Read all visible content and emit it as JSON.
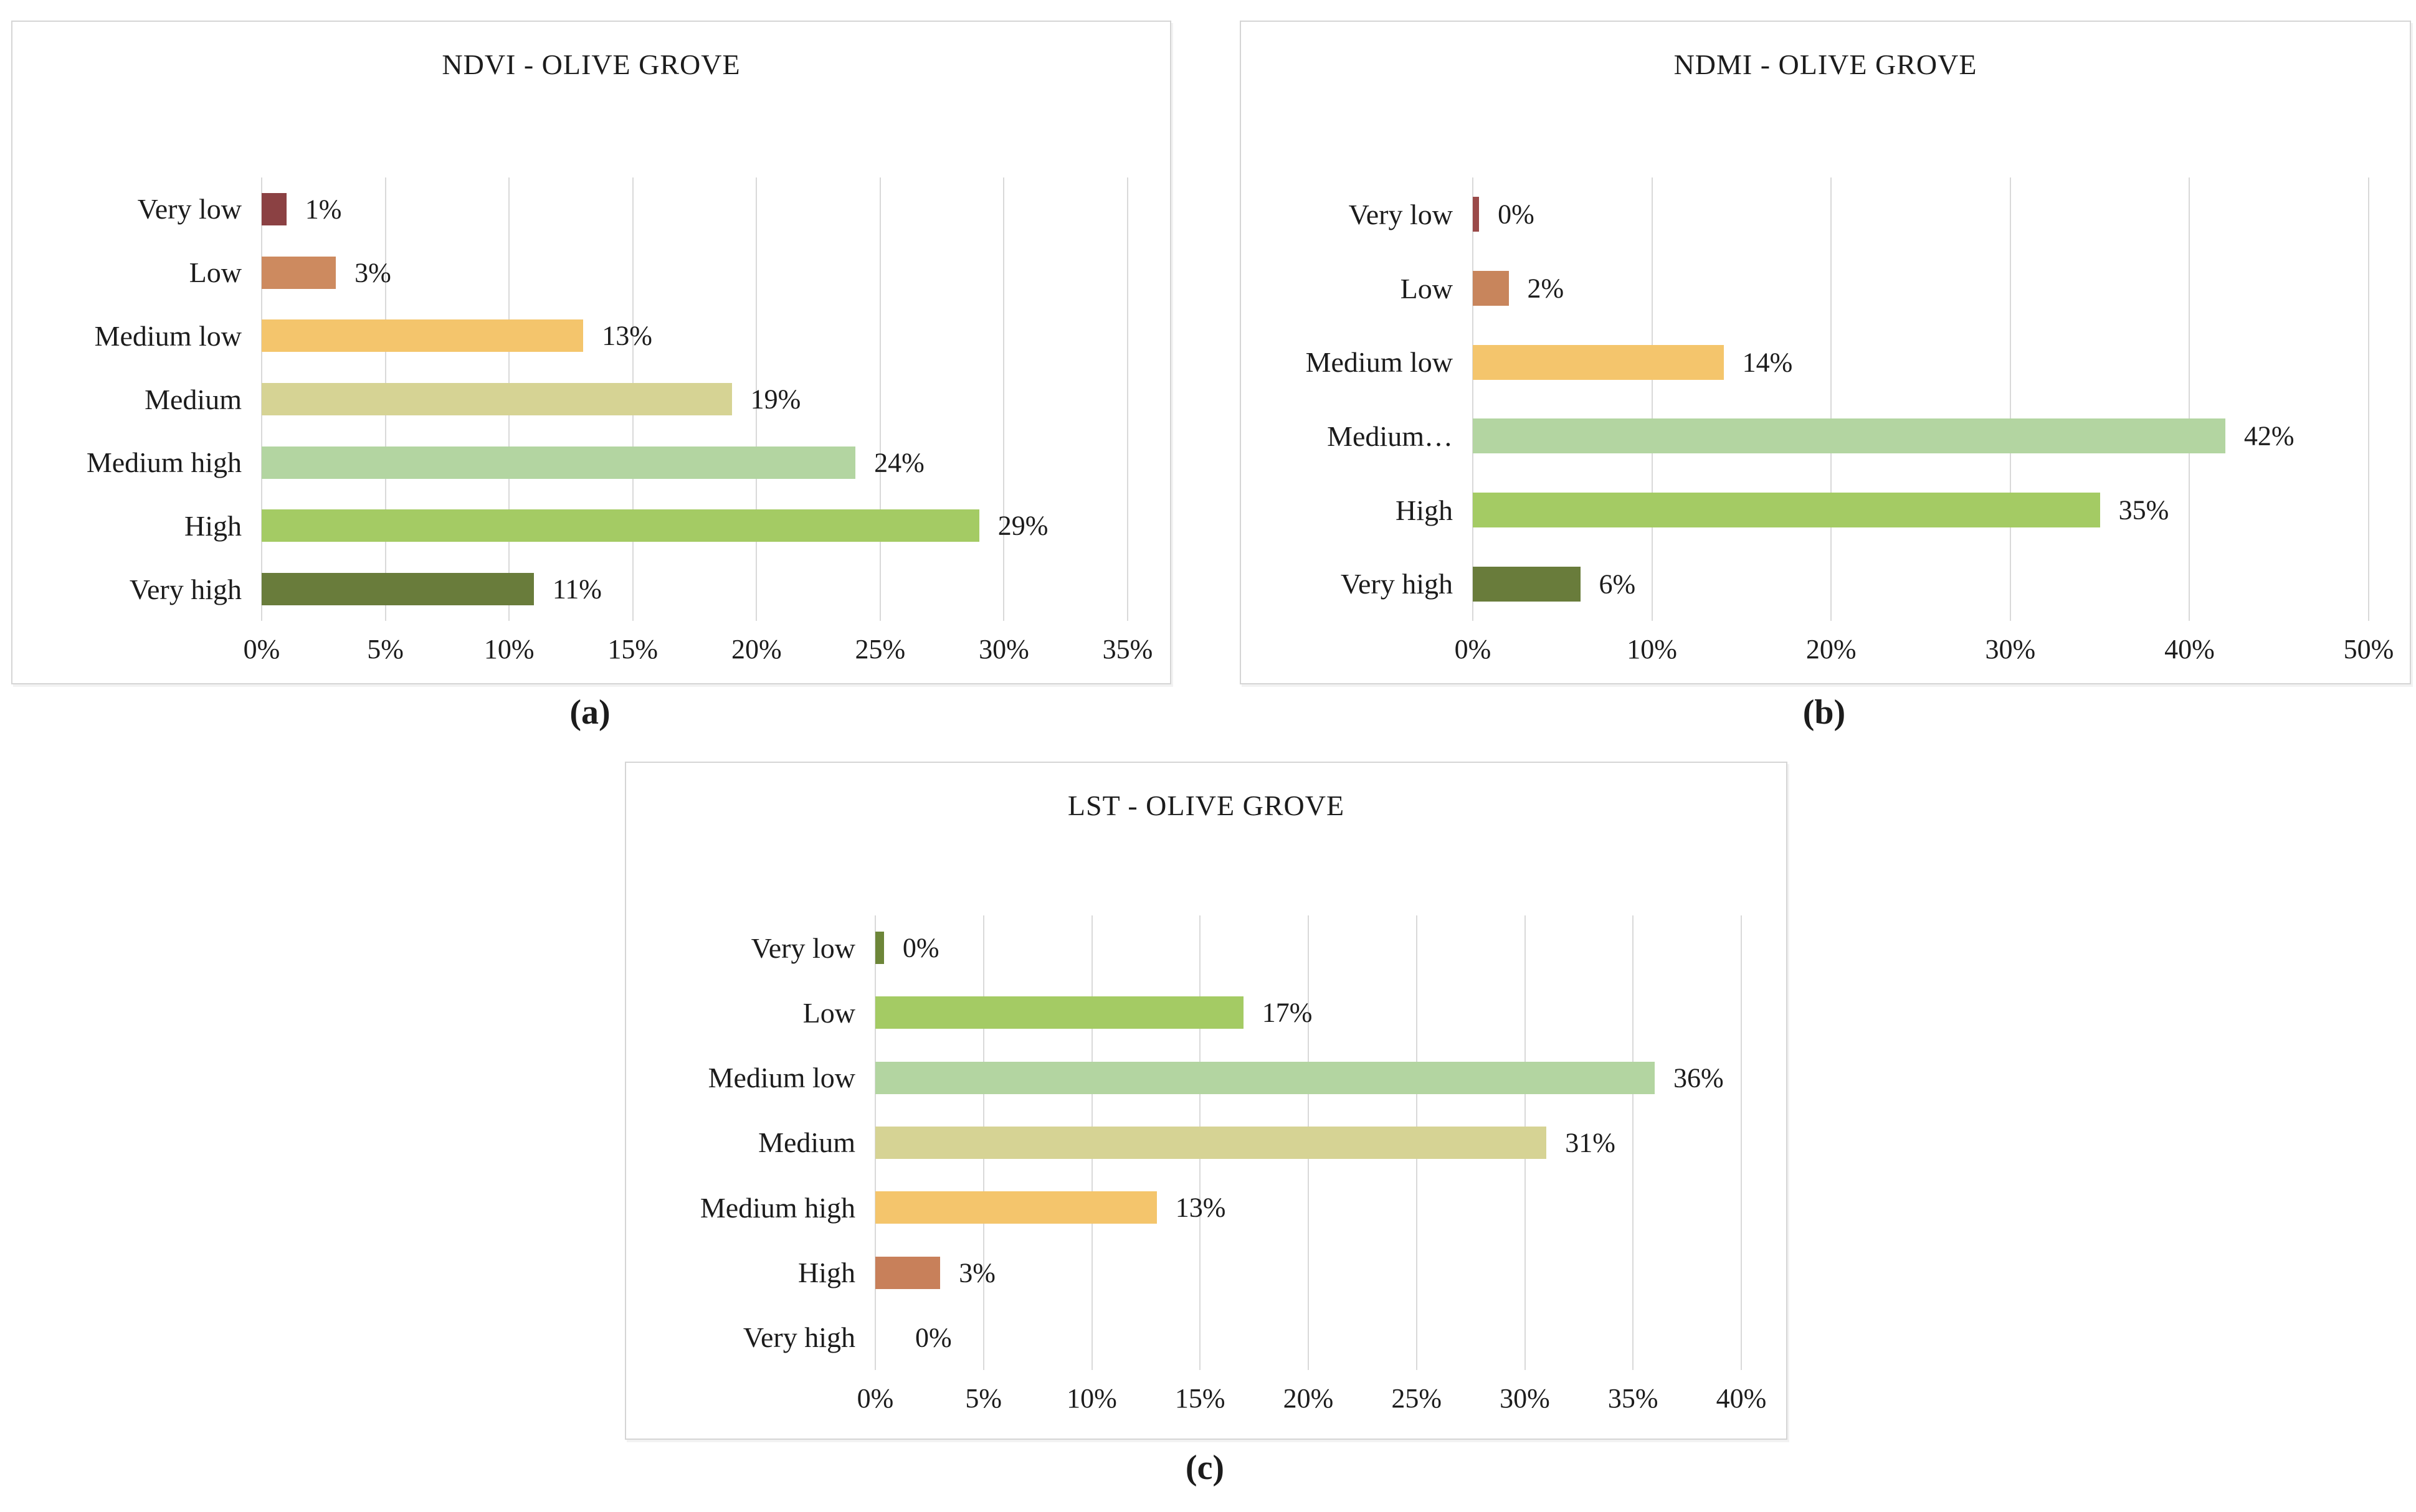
{
  "figure": {
    "captions": [
      "(a)",
      "(b)",
      "(c)"
    ]
  },
  "chart_data": [
    {
      "type": "bar",
      "orientation": "horizontal",
      "title": "NDVI - OLIVE GROVE",
      "categories": [
        "Very low",
        "Low",
        "Medium low",
        "Medium",
        "Medium high",
        "High",
        "Very high"
      ],
      "values": [
        1,
        3,
        13,
        19,
        24,
        29,
        11
      ],
      "bar_lengths": [
        1,
        3,
        13,
        19,
        24,
        29,
        11
      ],
      "value_labels": [
        "1%",
        "3%",
        "13%",
        "19%",
        "24%",
        "29%",
        "11%"
      ],
      "bar_colors": [
        "#8B4143",
        "#CD8A5F",
        "#F4C56C",
        "#D6D394",
        "#B3D5A1",
        "#A4CB64",
        "#697C3B"
      ],
      "xlabel": "",
      "ylabel": "",
      "xlim": [
        0,
        35
      ],
      "grid": true,
      "legend": false,
      "xticks": [
        {
          "value": 0,
          "label": "0%"
        },
        {
          "value": 5,
          "label": "5%"
        },
        {
          "value": 10,
          "label": "10%"
        },
        {
          "value": 15,
          "label": "15%"
        },
        {
          "value": 20,
          "label": "20%"
        },
        {
          "value": 25,
          "label": "25%"
        },
        {
          "value": 30,
          "label": "30%"
        },
        {
          "value": 35,
          "label": "35%"
        }
      ]
    },
    {
      "type": "bar",
      "orientation": "horizontal",
      "title": "NDMI - OLIVE GROVE",
      "categories": [
        "Very low",
        "Low",
        "Medium low",
        "Medium…",
        "High",
        "Very high"
      ],
      "values": [
        0,
        2,
        14,
        42,
        35,
        6
      ],
      "bar_lengths": [
        0.35,
        2,
        14,
        42,
        35,
        6
      ],
      "value_labels": [
        "0%",
        "2%",
        "14%",
        "42%",
        "35%",
        "6%"
      ],
      "bar_colors": [
        "#9A4A49",
        "#C8855C",
        "#F4C56C",
        "#B3D5A1",
        "#A4CB64",
        "#697C3B"
      ],
      "xlabel": "",
      "ylabel": "",
      "xlim": [
        0,
        50
      ],
      "grid": true,
      "legend": false,
      "xticks": [
        {
          "value": 0,
          "label": "0%"
        },
        {
          "value": 10,
          "label": "10%"
        },
        {
          "value": 20,
          "label": "20%"
        },
        {
          "value": 30,
          "label": "30%"
        },
        {
          "value": 40,
          "label": "40%"
        },
        {
          "value": 50,
          "label": "50%"
        }
      ]
    },
    {
      "type": "bar",
      "orientation": "horizontal",
      "title": "LST - OLIVE GROVE",
      "categories": [
        "Very low",
        "Low",
        "Medium low",
        "Medium",
        "Medium high",
        "High",
        "Very high"
      ],
      "values": [
        0,
        17,
        36,
        31,
        13,
        3,
        0
      ],
      "bar_lengths": [
        0.4,
        17,
        36,
        31,
        13,
        3,
        0
      ],
      "value_labels": [
        "0%",
        "17%",
        "36%",
        "31%",
        "13%",
        "3%",
        "0%"
      ],
      "bar_colors": [
        "#6D8639",
        "#A4CB64",
        "#B3D5A1",
        "#D6D394",
        "#F4C56C",
        "#C8805A",
        "#8B4143"
      ],
      "xlabel": "",
      "ylabel": "",
      "xlim": [
        0,
        40
      ],
      "grid": true,
      "legend": false,
      "xticks": [
        {
          "value": 0,
          "label": "0%"
        },
        {
          "value": 5,
          "label": "5%"
        },
        {
          "value": 10,
          "label": "10%"
        },
        {
          "value": 15,
          "label": "15%"
        },
        {
          "value": 20,
          "label": "20%"
        },
        {
          "value": 25,
          "label": "25%"
        },
        {
          "value": 30,
          "label": "30%"
        },
        {
          "value": 35,
          "label": "35%"
        },
        {
          "value": 40,
          "label": "40%"
        }
      ]
    }
  ]
}
